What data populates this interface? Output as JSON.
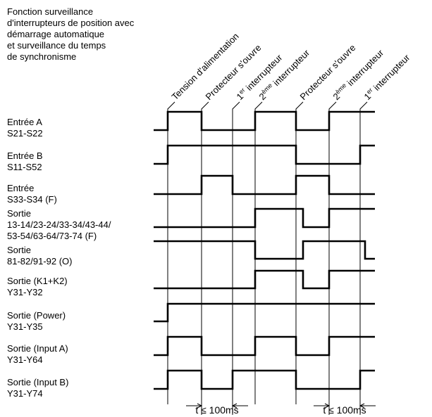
{
  "title": [
    "Fonction surveillance",
    "d'interrupteurs de position avec",
    "démarrage automatique",
    "et surveillance du temps",
    "de synchronisme"
  ],
  "events": [
    {
      "text": "Tension d'alimentation"
    },
    {
      "text": "Protecteur s'ouvre"
    },
    {
      "pre": "1",
      "sup": "er",
      "post": " interrupteur"
    },
    {
      "pre": "2",
      "sup": "ème",
      "post": " interrupteur"
    },
    {
      "text": "Protecteur s'ouvre"
    },
    {
      "pre": "2",
      "sup": "ème",
      "post": " interrupteur"
    },
    {
      "pre": "1",
      "sup": "er",
      "post": " interrupteur"
    }
  ],
  "signals": [
    [
      "Entrée A",
      "S21-S22"
    ],
    [
      "Entrée B",
      "S11-S52"
    ],
    [
      "Entrée",
      "S33-S34 (F)"
    ],
    [
      "Sortie",
      "13-14/23-24/33-34/43-44/",
      "53-54/63-64/73-74 (F)"
    ],
    [
      "Sortie",
      "81-82/91-92 (O)"
    ],
    [
      "Sortie (K1+K2)",
      "Y31-Y32"
    ],
    [
      "Sortie (Power)",
      "Y31-Y35"
    ],
    [
      "Sortie (Input A)",
      "Y31-Y64"
    ],
    [
      "Sortie (Input B)",
      "Y31-Y74"
    ]
  ],
  "timing": [
    "t ≤ 100ms",
    "t ≤ 100ms"
  ]
}
